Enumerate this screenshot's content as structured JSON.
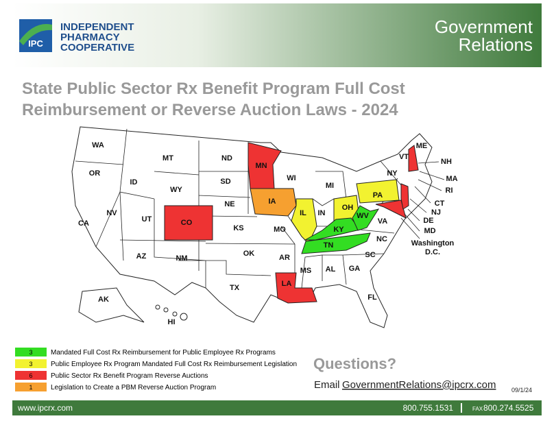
{
  "header": {
    "logo_badge": "IPC",
    "org_lines": [
      "INDEPENDENT",
      "PHARMACY",
      "COOPERATIVE"
    ],
    "section_lines": [
      "Government",
      "Relations"
    ]
  },
  "title_lines": [
    "State Public Sector Rx Benefit Program Full Cost",
    "Reimbursement or Reverse Auction Laws - 2024"
  ],
  "states": [
    "WA",
    "OR",
    "CA",
    "NV",
    "ID",
    "MT",
    "WY",
    "UT",
    "CO",
    "AZ",
    "NM",
    "ND",
    "SD",
    "NE",
    "KS",
    "OK",
    "TX",
    "MN",
    "IA",
    "MO",
    "AR",
    "LA",
    "WI",
    "IL",
    "MI",
    "IN",
    "OH",
    "KY",
    "TN",
    "MS",
    "AL",
    "GA",
    "FL",
    "SC",
    "NC",
    "VA",
    "WV",
    "PA",
    "NY",
    "ME",
    "VT",
    "NH",
    "MA",
    "RI",
    "CT",
    "NJ",
    "DE",
    "MD",
    "AK",
    "HI"
  ],
  "dc_label": [
    "Washington",
    "D.C."
  ],
  "legend": [
    {
      "count": "3",
      "text": "Mandated Full Cost Rx Reimbursement for Public Employee Rx Programs",
      "color": "#33dd22"
    },
    {
      "count": "3",
      "text": "Public Employee Rx Program Mandated Full Cost Rx Reimbursement Legislation",
      "color": "#f2f230"
    },
    {
      "count": "6",
      "text": "Public Sector Rx Benefit Program Reverse Auctions",
      "color": "#ee3333"
    },
    {
      "count": "1",
      "text": "Legislation to Create a PBM Reverse Auction Program",
      "color": "#f6a030"
    }
  ],
  "questions": "Questions?",
  "email_prefix": "Email",
  "email": "GovernmentRelations@ipcrx.com",
  "date": "09/1/24",
  "footer": {
    "website": "www.ipcrx.com",
    "phone": "800.755.1531",
    "fax_label": "FAX",
    "fax": "800.274.5525"
  }
}
